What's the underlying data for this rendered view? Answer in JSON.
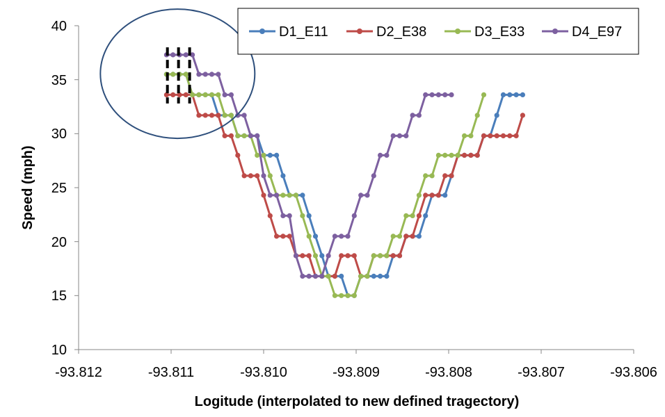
{
  "chart_data": {
    "type": "line",
    "xlabel": "Logitude (interpolated to new defined tragectory)",
    "ylabel": "Speed (mph)",
    "xlim": [
      -93.812,
      -93.806
    ],
    "ylim": [
      10,
      40
    ],
    "x_ticks": [
      "-93.812",
      "-93.811",
      "-93.810",
      "-93.809",
      "-93.808",
      "-93.807",
      "-93.806"
    ],
    "y_ticks": [
      "10",
      "15",
      "20",
      "25",
      "30",
      "35",
      "40"
    ],
    "legend_position": "top-right",
    "grid": false,
    "annotations": [
      "ellipse highlighting the start of the series near x = -93.8109",
      "three dashed vertical markers near x = -93.8110 to -93.8108"
    ],
    "series": [
      {
        "name": "D1_E11",
        "color": "#4a7ebb",
        "points": [
          [
            -93.81105,
            35.5
          ],
          [
            -93.81098,
            35.5
          ],
          [
            -93.81091,
            35.5
          ],
          [
            -93.81084,
            35.5
          ],
          [
            -93.81077,
            33.6
          ],
          [
            -93.8107,
            33.6
          ],
          [
            -93.81063,
            33.6
          ],
          [
            -93.81056,
            33.6
          ],
          [
            -93.81049,
            31.7
          ],
          [
            -93.81042,
            31.7
          ],
          [
            -93.81035,
            31.7
          ],
          [
            -93.81028,
            29.8
          ],
          [
            -93.81021,
            29.8
          ],
          [
            -93.81014,
            29.8
          ],
          [
            -93.81007,
            29.8
          ],
          [
            -93.81,
            28.0
          ],
          [
            -93.80993,
            28.0
          ],
          [
            -93.80986,
            28.0
          ],
          [
            -93.80979,
            26.1
          ],
          [
            -93.80972,
            24.3
          ],
          [
            -93.80965,
            24.3
          ],
          [
            -93.80958,
            24.3
          ],
          [
            -93.80951,
            22.4
          ],
          [
            -93.80944,
            20.5
          ],
          [
            -93.80937,
            18.7
          ],
          [
            -93.8093,
            16.8
          ],
          [
            -93.80923,
            16.8
          ],
          [
            -93.80916,
            16.8
          ],
          [
            -93.80909,
            15.0
          ],
          [
            -93.80902,
            15.0
          ],
          [
            -93.80895,
            16.8
          ],
          [
            -93.80888,
            16.8
          ],
          [
            -93.80881,
            16.8
          ],
          [
            -93.80874,
            16.8
          ],
          [
            -93.80867,
            16.8
          ],
          [
            -93.8086,
            18.7
          ],
          [
            -93.80853,
            18.7
          ],
          [
            -93.80846,
            20.5
          ],
          [
            -93.80839,
            20.5
          ],
          [
            -93.80832,
            20.5
          ],
          [
            -93.80825,
            22.4
          ],
          [
            -93.80818,
            24.3
          ],
          [
            -93.80811,
            24.3
          ],
          [
            -93.80804,
            24.3
          ],
          [
            -93.80797,
            26.1
          ],
          [
            -93.8079,
            28.0
          ],
          [
            -93.80783,
            28.0
          ],
          [
            -93.80776,
            28.0
          ],
          [
            -93.80769,
            28.0
          ],
          [
            -93.80762,
            29.8
          ],
          [
            -93.80755,
            29.8
          ],
          [
            -93.80748,
            31.7
          ],
          [
            -93.80741,
            33.6
          ],
          [
            -93.80734,
            33.6
          ],
          [
            -93.80727,
            33.6
          ],
          [
            -93.8072,
            33.6
          ]
        ]
      },
      {
        "name": "D2_E38",
        "color": "#be4b48",
        "points": [
          [
            -93.81105,
            33.6
          ],
          [
            -93.81098,
            33.6
          ],
          [
            -93.81091,
            33.6
          ],
          [
            -93.81084,
            33.6
          ],
          [
            -93.81077,
            33.6
          ],
          [
            -93.8107,
            31.7
          ],
          [
            -93.81063,
            31.7
          ],
          [
            -93.81056,
            31.7
          ],
          [
            -93.81049,
            31.7
          ],
          [
            -93.81042,
            29.8
          ],
          [
            -93.81035,
            29.8
          ],
          [
            -93.81028,
            28.0
          ],
          [
            -93.81021,
            26.1
          ],
          [
            -93.81014,
            26.1
          ],
          [
            -93.81007,
            26.1
          ],
          [
            -93.81,
            24.3
          ],
          [
            -93.80993,
            22.4
          ],
          [
            -93.80986,
            20.5
          ],
          [
            -93.80979,
            20.5
          ],
          [
            -93.80972,
            20.5
          ],
          [
            -93.80965,
            18.7
          ],
          [
            -93.80958,
            18.7
          ],
          [
            -93.80951,
            18.7
          ],
          [
            -93.80944,
            16.8
          ],
          [
            -93.80937,
            16.8
          ],
          [
            -93.8093,
            16.8
          ],
          [
            -93.80923,
            16.8
          ],
          [
            -93.80916,
            18.7
          ],
          [
            -93.80909,
            18.7
          ],
          [
            -93.80902,
            18.7
          ],
          [
            -93.80895,
            16.8
          ],
          [
            -93.80888,
            16.8
          ],
          [
            -93.80881,
            18.7
          ],
          [
            -93.80874,
            18.7
          ],
          [
            -93.80867,
            18.7
          ],
          [
            -93.8086,
            18.7
          ],
          [
            -93.80853,
            18.7
          ],
          [
            -93.80846,
            20.5
          ],
          [
            -93.80839,
            20.5
          ],
          [
            -93.80832,
            22.4
          ],
          [
            -93.80825,
            24.3
          ],
          [
            -93.80818,
            24.3
          ],
          [
            -93.80811,
            24.3
          ],
          [
            -93.80804,
            26.1
          ],
          [
            -93.80797,
            26.1
          ],
          [
            -93.8079,
            28.0
          ],
          [
            -93.80783,
            28.0
          ],
          [
            -93.80776,
            28.0
          ],
          [
            -93.80769,
            28.0
          ],
          [
            -93.80762,
            29.8
          ],
          [
            -93.80755,
            29.8
          ],
          [
            -93.80748,
            29.8
          ],
          [
            -93.80741,
            29.8
          ],
          [
            -93.80734,
            29.8
          ],
          [
            -93.80727,
            29.8
          ],
          [
            -93.8072,
            31.7
          ]
        ]
      },
      {
        "name": "D3_E33",
        "color": "#98b954",
        "points": [
          [
            -93.81105,
            35.5
          ],
          [
            -93.81098,
            35.5
          ],
          [
            -93.81091,
            35.5
          ],
          [
            -93.81084,
            35.5
          ],
          [
            -93.81077,
            33.6
          ],
          [
            -93.8107,
            33.6
          ],
          [
            -93.81063,
            33.6
          ],
          [
            -93.81056,
            33.6
          ],
          [
            -93.81049,
            33.6
          ],
          [
            -93.81042,
            31.7
          ],
          [
            -93.81035,
            31.7
          ],
          [
            -93.81028,
            29.8
          ],
          [
            -93.81021,
            29.8
          ],
          [
            -93.81014,
            29.8
          ],
          [
            -93.81007,
            28.0
          ],
          [
            -93.81,
            28.0
          ],
          [
            -93.80993,
            26.1
          ],
          [
            -93.80986,
            24.3
          ],
          [
            -93.80979,
            24.3
          ],
          [
            -93.80972,
            24.3
          ],
          [
            -93.80965,
            24.3
          ],
          [
            -93.80958,
            22.4
          ],
          [
            -93.80951,
            20.5
          ],
          [
            -93.80944,
            18.7
          ],
          [
            -93.80937,
            16.8
          ],
          [
            -93.8093,
            16.8
          ],
          [
            -93.80923,
            15.0
          ],
          [
            -93.80916,
            15.0
          ],
          [
            -93.80909,
            15.0
          ],
          [
            -93.80902,
            15.0
          ],
          [
            -93.80895,
            16.8
          ],
          [
            -93.80888,
            16.8
          ],
          [
            -93.80881,
            18.7
          ],
          [
            -93.80874,
            18.7
          ],
          [
            -93.80867,
            18.7
          ],
          [
            -93.8086,
            20.5
          ],
          [
            -93.80853,
            20.5
          ],
          [
            -93.80846,
            22.4
          ],
          [
            -93.80839,
            22.4
          ],
          [
            -93.80832,
            24.3
          ],
          [
            -93.80825,
            26.1
          ],
          [
            -93.80818,
            26.1
          ],
          [
            -93.80811,
            28.0
          ],
          [
            -93.80804,
            28.0
          ],
          [
            -93.80797,
            28.0
          ],
          [
            -93.8079,
            28.0
          ],
          [
            -93.80783,
            29.8
          ],
          [
            -93.80776,
            29.8
          ],
          [
            -93.80769,
            31.7
          ],
          [
            -93.80762,
            33.6
          ]
        ]
      },
      {
        "name": "D4_E97",
        "color": "#7d60a0",
        "points": [
          [
            -93.81105,
            37.3
          ],
          [
            -93.81098,
            37.3
          ],
          [
            -93.81091,
            37.3
          ],
          [
            -93.81084,
            37.3
          ],
          [
            -93.81077,
            37.3
          ],
          [
            -93.8107,
            35.5
          ],
          [
            -93.81063,
            35.5
          ],
          [
            -93.81056,
            35.5
          ],
          [
            -93.81049,
            35.5
          ],
          [
            -93.81042,
            33.6
          ],
          [
            -93.81035,
            33.6
          ],
          [
            -93.81028,
            31.7
          ],
          [
            -93.81021,
            31.7
          ],
          [
            -93.81014,
            29.8
          ],
          [
            -93.81007,
            29.8
          ],
          [
            -93.81,
            26.1
          ],
          [
            -93.80993,
            24.3
          ],
          [
            -93.80986,
            24.3
          ],
          [
            -93.80979,
            22.4
          ],
          [
            -93.80972,
            22.4
          ],
          [
            -93.80965,
            18.7
          ],
          [
            -93.80958,
            16.8
          ],
          [
            -93.80951,
            16.8
          ],
          [
            -93.80944,
            16.8
          ],
          [
            -93.80937,
            16.8
          ],
          [
            -93.8093,
            18.7
          ],
          [
            -93.80923,
            20.5
          ],
          [
            -93.80916,
            20.5
          ],
          [
            -93.80909,
            20.5
          ],
          [
            -93.80902,
            22.4
          ],
          [
            -93.80895,
            24.3
          ],
          [
            -93.80888,
            24.3
          ],
          [
            -93.80881,
            26.1
          ],
          [
            -93.80874,
            28.0
          ],
          [
            -93.80867,
            28.0
          ],
          [
            -93.8086,
            29.8
          ],
          [
            -93.80853,
            29.8
          ],
          [
            -93.80846,
            29.8
          ],
          [
            -93.80839,
            31.7
          ],
          [
            -93.80832,
            31.7
          ],
          [
            -93.80825,
            33.6
          ],
          [
            -93.80818,
            33.6
          ],
          [
            -93.80811,
            33.6
          ],
          [
            -93.80804,
            33.6
          ],
          [
            -93.80797,
            33.6
          ]
        ]
      }
    ]
  }
}
